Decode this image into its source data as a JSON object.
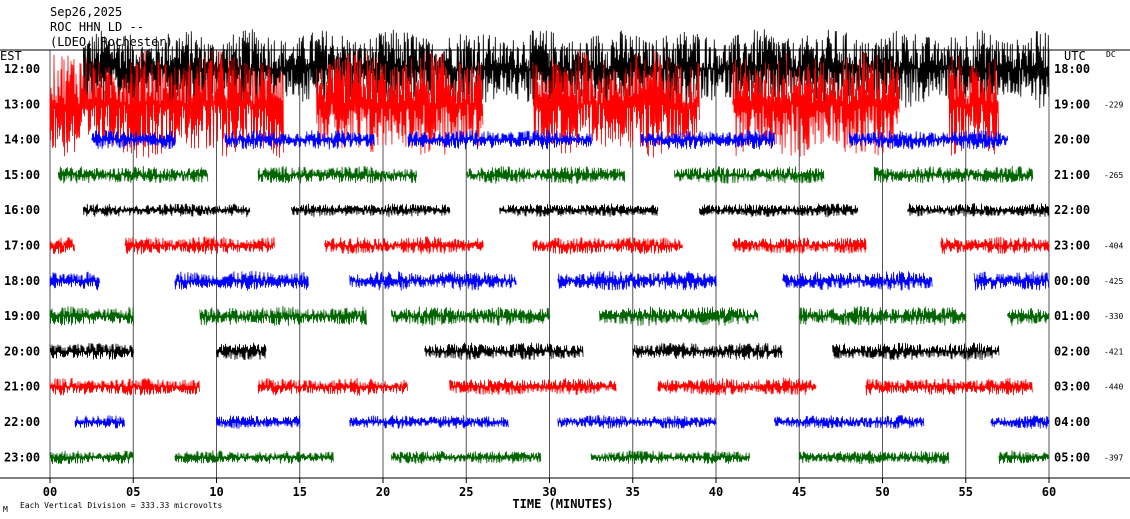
{
  "header": {
    "date": "Sep26,2025",
    "station": "ROC HHN LD --",
    "network": "(LDEO, Rochester)"
  },
  "left_tz": "EST",
  "right_tz": "UTC",
  "dc_label": "DC",
  "footer": {
    "xlabel": "TIME (MINUTES)",
    "division_note": "Each Vertical Division = 333.33 microvolts",
    "corner_mark": "M"
  },
  "chart_data": {
    "type": "line",
    "title": "",
    "xlabel": "TIME (MINUTES)",
    "x_ticks": [
      "00",
      "05",
      "10",
      "15",
      "20",
      "25",
      "30",
      "35",
      "40",
      "45",
      "50",
      "55",
      "60"
    ],
    "xlim": [
      0,
      60
    ],
    "grid": "vertical lines every 5 minutes",
    "colors": [
      "#000000",
      "#ff0000",
      "#0000ff",
      "#006400"
    ],
    "rows": [
      {
        "left": "12:00",
        "right": "18:00",
        "dc": "",
        "color": "#000000",
        "amp": 40,
        "segments": [
          [
            2,
            60
          ]
        ]
      },
      {
        "left": "13:00",
        "right": "19:00",
        "dc": "-229",
        "color": "#ff0000",
        "amp": 55,
        "segments": [
          [
            0,
            14
          ],
          [
            16,
            26
          ],
          [
            29,
            39
          ],
          [
            41,
            51
          ],
          [
            54,
            57
          ]
        ]
      },
      {
        "left": "14:00",
        "right": "20:00",
        "dc": "",
        "color": "#0000ff",
        "amp": 10,
        "segments": [
          [
            2.5,
            7.5
          ],
          [
            10.5,
            19.5
          ],
          [
            21.5,
            32.5
          ],
          [
            35.5,
            43.5
          ],
          [
            48,
            57.5
          ]
        ]
      },
      {
        "left": "15:00",
        "right": "21:00",
        "dc": "-265",
        "color": "#006400",
        "amp": 9,
        "segments": [
          [
            0.5,
            9.5
          ],
          [
            12.5,
            22
          ],
          [
            25,
            34.5
          ],
          [
            37.5,
            46.5
          ],
          [
            49.5,
            59
          ]
        ]
      },
      {
        "left": "16:00",
        "right": "22:00",
        "dc": "",
        "color": "#000000",
        "amp": 7,
        "segments": [
          [
            2,
            12
          ],
          [
            14.5,
            24
          ],
          [
            27,
            36.5
          ],
          [
            39,
            48.5
          ],
          [
            51.5,
            60
          ]
        ]
      },
      {
        "left": "17:00",
        "right": "23:00",
        "dc": "-404",
        "color": "#ff0000",
        "amp": 9,
        "segments": [
          [
            0,
            1.5
          ],
          [
            4.5,
            13.5
          ],
          [
            16.5,
            26
          ],
          [
            29,
            38
          ],
          [
            41,
            49
          ],
          [
            53.5,
            60
          ]
        ]
      },
      {
        "left": "18:00",
        "right": "00:00",
        "dc": "-425",
        "color": "#0000ff",
        "amp": 10,
        "segments": [
          [
            0,
            3
          ],
          [
            7.5,
            15.5
          ],
          [
            18,
            28
          ],
          [
            30.5,
            40
          ],
          [
            44,
            53
          ],
          [
            55.5,
            60
          ]
        ]
      },
      {
        "left": "19:00",
        "right": "01:00",
        "dc": "-330",
        "color": "#006400",
        "amp": 10,
        "segments": [
          [
            0,
            5
          ],
          [
            9,
            19
          ],
          [
            20.5,
            30
          ],
          [
            33,
            42.5
          ],
          [
            45,
            55
          ],
          [
            57.5,
            60
          ]
        ]
      },
      {
        "left": "20:00",
        "right": "02:00",
        "dc": "-421",
        "color": "#000000",
        "amp": 9,
        "segments": [
          [
            0,
            5
          ],
          [
            10,
            13
          ],
          [
            22.5,
            32
          ],
          [
            35,
            44
          ],
          [
            47,
            57
          ]
        ]
      },
      {
        "left": "21:00",
        "right": "03:00",
        "dc": "-440",
        "color": "#ff0000",
        "amp": 9,
        "segments": [
          [
            0,
            9
          ],
          [
            12.5,
            21.5
          ],
          [
            24,
            34
          ],
          [
            36.5,
            46
          ],
          [
            49,
            59
          ]
        ]
      },
      {
        "left": "22:00",
        "right": "04:00",
        "dc": "",
        "color": "#0000ff",
        "amp": 7,
        "segments": [
          [
            1.5,
            4.5
          ],
          [
            10,
            15
          ],
          [
            18,
            27.5
          ],
          [
            30.5,
            40
          ],
          [
            43.5,
            52.5
          ],
          [
            56.5,
            60
          ]
        ]
      },
      {
        "left": "23:00",
        "right": "05:00",
        "dc": "-397",
        "color": "#006400",
        "amp": 7,
        "segments": [
          [
            0,
            5
          ],
          [
            7.5,
            17
          ],
          [
            20.5,
            29.5
          ],
          [
            32.5,
            42
          ],
          [
            45,
            54
          ],
          [
            57,
            60
          ]
        ]
      }
    ]
  }
}
